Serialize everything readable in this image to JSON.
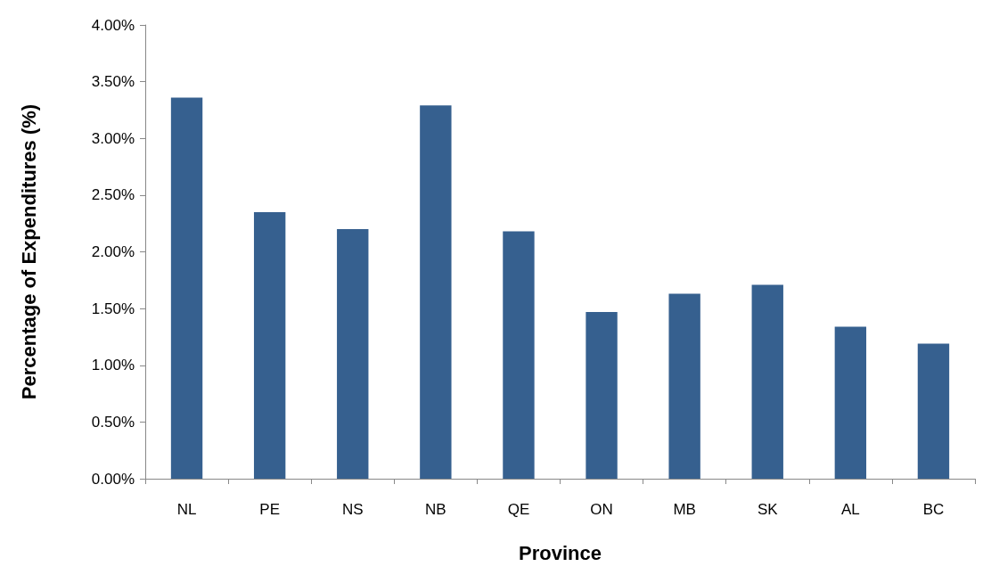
{
  "chart_data": {
    "type": "bar",
    "xlabel": "Province",
    "ylabel": "Percentage of Expenditures (%)",
    "categories": [
      "NL",
      "PE",
      "NS",
      "NB",
      "QE",
      "ON",
      "MB",
      "SK",
      "AL",
      "BC"
    ],
    "values": [
      3.36,
      2.35,
      2.2,
      3.29,
      2.18,
      1.47,
      1.63,
      1.71,
      1.34,
      1.19
    ],
    "color": "#36608f",
    "ylim": [
      0,
      4
    ],
    "yticks": [
      {
        "value": 0,
        "label": "0.00%"
      },
      {
        "value": 0.5,
        "label": "0.50%"
      },
      {
        "value": 1,
        "label": "1.00%"
      },
      {
        "value": 1.5,
        "label": "1.50%"
      },
      {
        "value": 2,
        "label": "2.00%"
      },
      {
        "value": 2.5,
        "label": "2.50%"
      },
      {
        "value": 3,
        "label": "3.00%"
      },
      {
        "value": 3.5,
        "label": "3.50%"
      },
      {
        "value": 4,
        "label": "4.00%"
      }
    ],
    "grid": false
  }
}
